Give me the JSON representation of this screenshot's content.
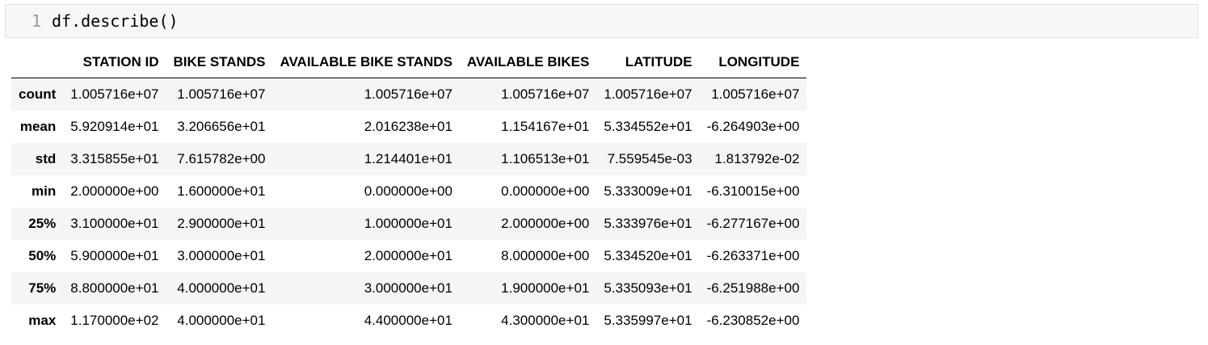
{
  "cell": {
    "line_number": "1",
    "code": "df.describe()"
  },
  "table": {
    "columns": [
      "STATION ID",
      "BIKE STANDS",
      "AVAILABLE BIKE STANDS",
      "AVAILABLE BIKES",
      "LATITUDE",
      "LONGITUDE"
    ],
    "rows": [
      {
        "label": "count",
        "values": [
          "1.005716e+07",
          "1.005716e+07",
          "1.005716e+07",
          "1.005716e+07",
          "1.005716e+07",
          "1.005716e+07"
        ]
      },
      {
        "label": "mean",
        "values": [
          "5.920914e+01",
          "3.206656e+01",
          "2.016238e+01",
          "1.154167e+01",
          "5.334552e+01",
          "-6.264903e+00"
        ]
      },
      {
        "label": "std",
        "values": [
          "3.315855e+01",
          "7.615782e+00",
          "1.214401e+01",
          "1.106513e+01",
          "7.559545e-03",
          "1.813792e-02"
        ]
      },
      {
        "label": "min",
        "values": [
          "2.000000e+00",
          "1.600000e+01",
          "0.000000e+00",
          "0.000000e+00",
          "5.333009e+01",
          "-6.310015e+00"
        ]
      },
      {
        "label": "25%",
        "values": [
          "3.100000e+01",
          "2.900000e+01",
          "1.000000e+01",
          "2.000000e+00",
          "5.333976e+01",
          "-6.277167e+00"
        ]
      },
      {
        "label": "50%",
        "values": [
          "5.900000e+01",
          "3.000000e+01",
          "2.000000e+01",
          "8.000000e+00",
          "5.334520e+01",
          "-6.263371e+00"
        ]
      },
      {
        "label": "75%",
        "values": [
          "8.800000e+01",
          "4.000000e+01",
          "3.000000e+01",
          "1.900000e+01",
          "5.335093e+01",
          "-6.251988e+00"
        ]
      },
      {
        "label": "max",
        "values": [
          "1.170000e+02",
          "4.000000e+01",
          "4.400000e+01",
          "4.300000e+01",
          "5.335997e+01",
          "-6.230852e+00"
        ]
      }
    ]
  }
}
